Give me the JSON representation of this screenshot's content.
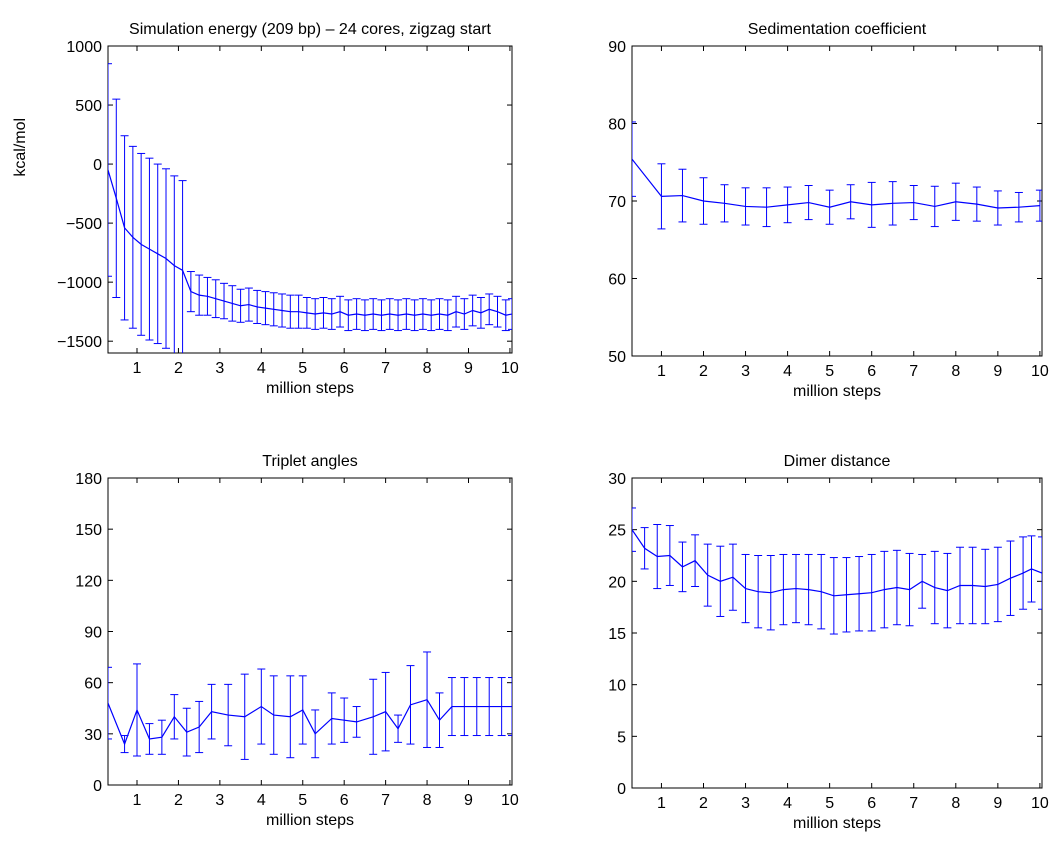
{
  "figure": {
    "line_color": "#0000ff"
  },
  "chart_data": [
    {
      "type": "line",
      "title": "Simulation energy (209 bp) – 24 cores, zigzag start",
      "xlabel": "million steps",
      "ylabel": "kcal/mol",
      "xlim": [
        0.3,
        10.05
      ],
      "ylim": [
        -1600,
        1000
      ],
      "xticks": [
        1,
        2,
        3,
        4,
        5,
        6,
        7,
        8,
        9,
        10
      ],
      "yticks": [
        -1500,
        -1000,
        -500,
        0,
        500,
        1000
      ],
      "grid": false,
      "x": [
        0.3,
        0.5,
        0.7,
        0.9,
        1.1,
        1.3,
        1.5,
        1.7,
        1.9,
        2.1,
        2.3,
        2.5,
        2.7,
        2.9,
        3.1,
        3.3,
        3.5,
        3.7,
        3.9,
        4.1,
        4.3,
        4.5,
        4.7,
        4.9,
        5.1,
        5.3,
        5.5,
        5.7,
        5.9,
        6.1,
        6.3,
        6.5,
        6.7,
        6.9,
        7.1,
        7.3,
        7.5,
        7.7,
        7.9,
        8.1,
        8.3,
        8.5,
        8.7,
        8.9,
        9.1,
        9.3,
        9.5,
        9.7,
        9.9,
        10.05
      ],
      "y": [
        -50,
        -290,
        -540,
        -620,
        -680,
        -720,
        -760,
        -800,
        -860,
        -900,
        -1080,
        -1110,
        -1120,
        -1140,
        -1160,
        -1180,
        -1200,
        -1190,
        -1210,
        -1220,
        -1230,
        -1240,
        -1250,
        -1250,
        -1260,
        -1270,
        -1260,
        -1270,
        -1250,
        -1280,
        -1270,
        -1280,
        -1270,
        -1280,
        -1270,
        -1280,
        -1270,
        -1280,
        -1270,
        -1280,
        -1270,
        -1280,
        -1250,
        -1270,
        -1240,
        -1260,
        -1230,
        -1250,
        -1280,
        -1270
      ],
      "err": [
        900,
        840,
        780,
        770,
        770,
        770,
        760,
        760,
        760,
        760,
        170,
        170,
        160,
        160,
        150,
        150,
        140,
        140,
        140,
        140,
        140,
        140,
        140,
        140,
        130,
        130,
        130,
        130,
        130,
        130,
        130,
        130,
        130,
        130,
        130,
        130,
        130,
        130,
        130,
        130,
        130,
        130,
        130,
        130,
        130,
        130,
        130,
        130,
        130,
        130
      ]
    },
    {
      "type": "line",
      "title": "Sedimentation coefficient",
      "xlabel": "million steps",
      "ylabel": "",
      "xlim": [
        0.3,
        10.05
      ],
      "ylim": [
        50,
        90
      ],
      "xticks": [
        1,
        2,
        3,
        4,
        5,
        6,
        7,
        8,
        9,
        10
      ],
      "yticks": [
        50,
        60,
        70,
        80,
        90
      ],
      "grid": false,
      "x": [
        0.3,
        1.0,
        1.5,
        2.0,
        2.5,
        3.0,
        3.5,
        4.0,
        4.5,
        5.0,
        5.5,
        6.0,
        6.5,
        7.0,
        7.5,
        8.0,
        8.5,
        9.0,
        9.5,
        10.0
      ],
      "y": [
        75.4,
        70.6,
        70.7,
        70.0,
        69.7,
        69.3,
        69.2,
        69.5,
        69.8,
        69.2,
        69.9,
        69.5,
        69.7,
        69.8,
        69.3,
        69.9,
        69.6,
        69.1,
        69.2,
        69.4
      ],
      "err": [
        4.8,
        4.2,
        3.4,
        3.0,
        2.4,
        2.4,
        2.5,
        2.3,
        2.2,
        2.2,
        2.2,
        2.9,
        2.8,
        2.2,
        2.6,
        2.4,
        2.2,
        2.2,
        1.9,
        2.0
      ]
    },
    {
      "type": "line",
      "title": "Triplet angles",
      "xlabel": "million steps",
      "ylabel": "",
      "xlim": [
        0.3,
        10.05
      ],
      "ylim": [
        0,
        180
      ],
      "xticks": [
        1,
        2,
        3,
        4,
        5,
        6,
        7,
        8,
        9,
        10
      ],
      "yticks": [
        0,
        30,
        60,
        90,
        120,
        150,
        180
      ],
      "grid": false,
      "x": [
        0.3,
        0.7,
        1.0,
        1.3,
        1.6,
        1.9,
        2.2,
        2.5,
        2.8,
        3.2,
        3.6,
        4.0,
        4.3,
        4.7,
        5.0,
        5.3,
        5.7,
        6.0,
        6.3,
        6.7,
        7.0,
        7.3,
        7.6,
        8.0,
        8.3,
        8.6,
        8.9,
        9.2,
        9.5,
        9.8,
        10.05
      ],
      "y": [
        48,
        24,
        44,
        27,
        28,
        40,
        31,
        34,
        43,
        41,
        40,
        46,
        41,
        40,
        44,
        30,
        39,
        38,
        37,
        40,
        43,
        33,
        47,
        50,
        38,
        46,
        46,
        46,
        46,
        46,
        46
      ],
      "err": [
        21,
        5,
        27,
        9,
        10,
        13,
        14,
        15,
        16,
        18,
        25,
        22,
        23,
        24,
        20,
        14,
        15,
        13,
        9,
        22,
        23,
        8,
        23,
        28,
        16,
        17,
        17,
        17,
        17,
        17,
        17
      ]
    },
    {
      "type": "line",
      "title": "Dimer distance",
      "xlabel": "million steps",
      "ylabel": "",
      "xlim": [
        0.3,
        10.05
      ],
      "ylim": [
        0,
        30
      ],
      "xticks": [
        1,
        2,
        3,
        4,
        5,
        6,
        7,
        8,
        9,
        10
      ],
      "yticks": [
        0,
        5,
        10,
        15,
        20,
        25,
        30
      ],
      "grid": false,
      "x": [
        0.3,
        0.6,
        0.9,
        1.2,
        1.5,
        1.8,
        2.1,
        2.4,
        2.7,
        3.0,
        3.3,
        3.6,
        3.9,
        4.2,
        4.5,
        4.8,
        5.1,
        5.4,
        5.7,
        6.0,
        6.3,
        6.6,
        6.9,
        7.2,
        7.5,
        7.8,
        8.1,
        8.4,
        8.7,
        9.0,
        9.3,
        9.6,
        9.8,
        10.05
      ],
      "y": [
        25.0,
        23.2,
        22.4,
        22.5,
        21.4,
        22.0,
        20.6,
        20.0,
        20.4,
        19.3,
        19.0,
        18.9,
        19.2,
        19.3,
        19.2,
        19.0,
        18.6,
        18.7,
        18.8,
        18.9,
        19.2,
        19.4,
        19.2,
        20.0,
        19.4,
        19.1,
        19.6,
        19.6,
        19.5,
        19.7,
        20.3,
        20.8,
        21.2,
        20.8
      ],
      "err": [
        2.1,
        2.0,
        3.1,
        2.9,
        2.4,
        2.5,
        3.0,
        3.4,
        3.2,
        3.3,
        3.5,
        3.6,
        3.4,
        3.3,
        3.4,
        3.6,
        3.7,
        3.6,
        3.6,
        3.7,
        3.7,
        3.6,
        3.5,
        2.6,
        3.5,
        3.6,
        3.7,
        3.7,
        3.6,
        3.6,
        3.6,
        3.5,
        3.2,
        3.5
      ]
    }
  ]
}
